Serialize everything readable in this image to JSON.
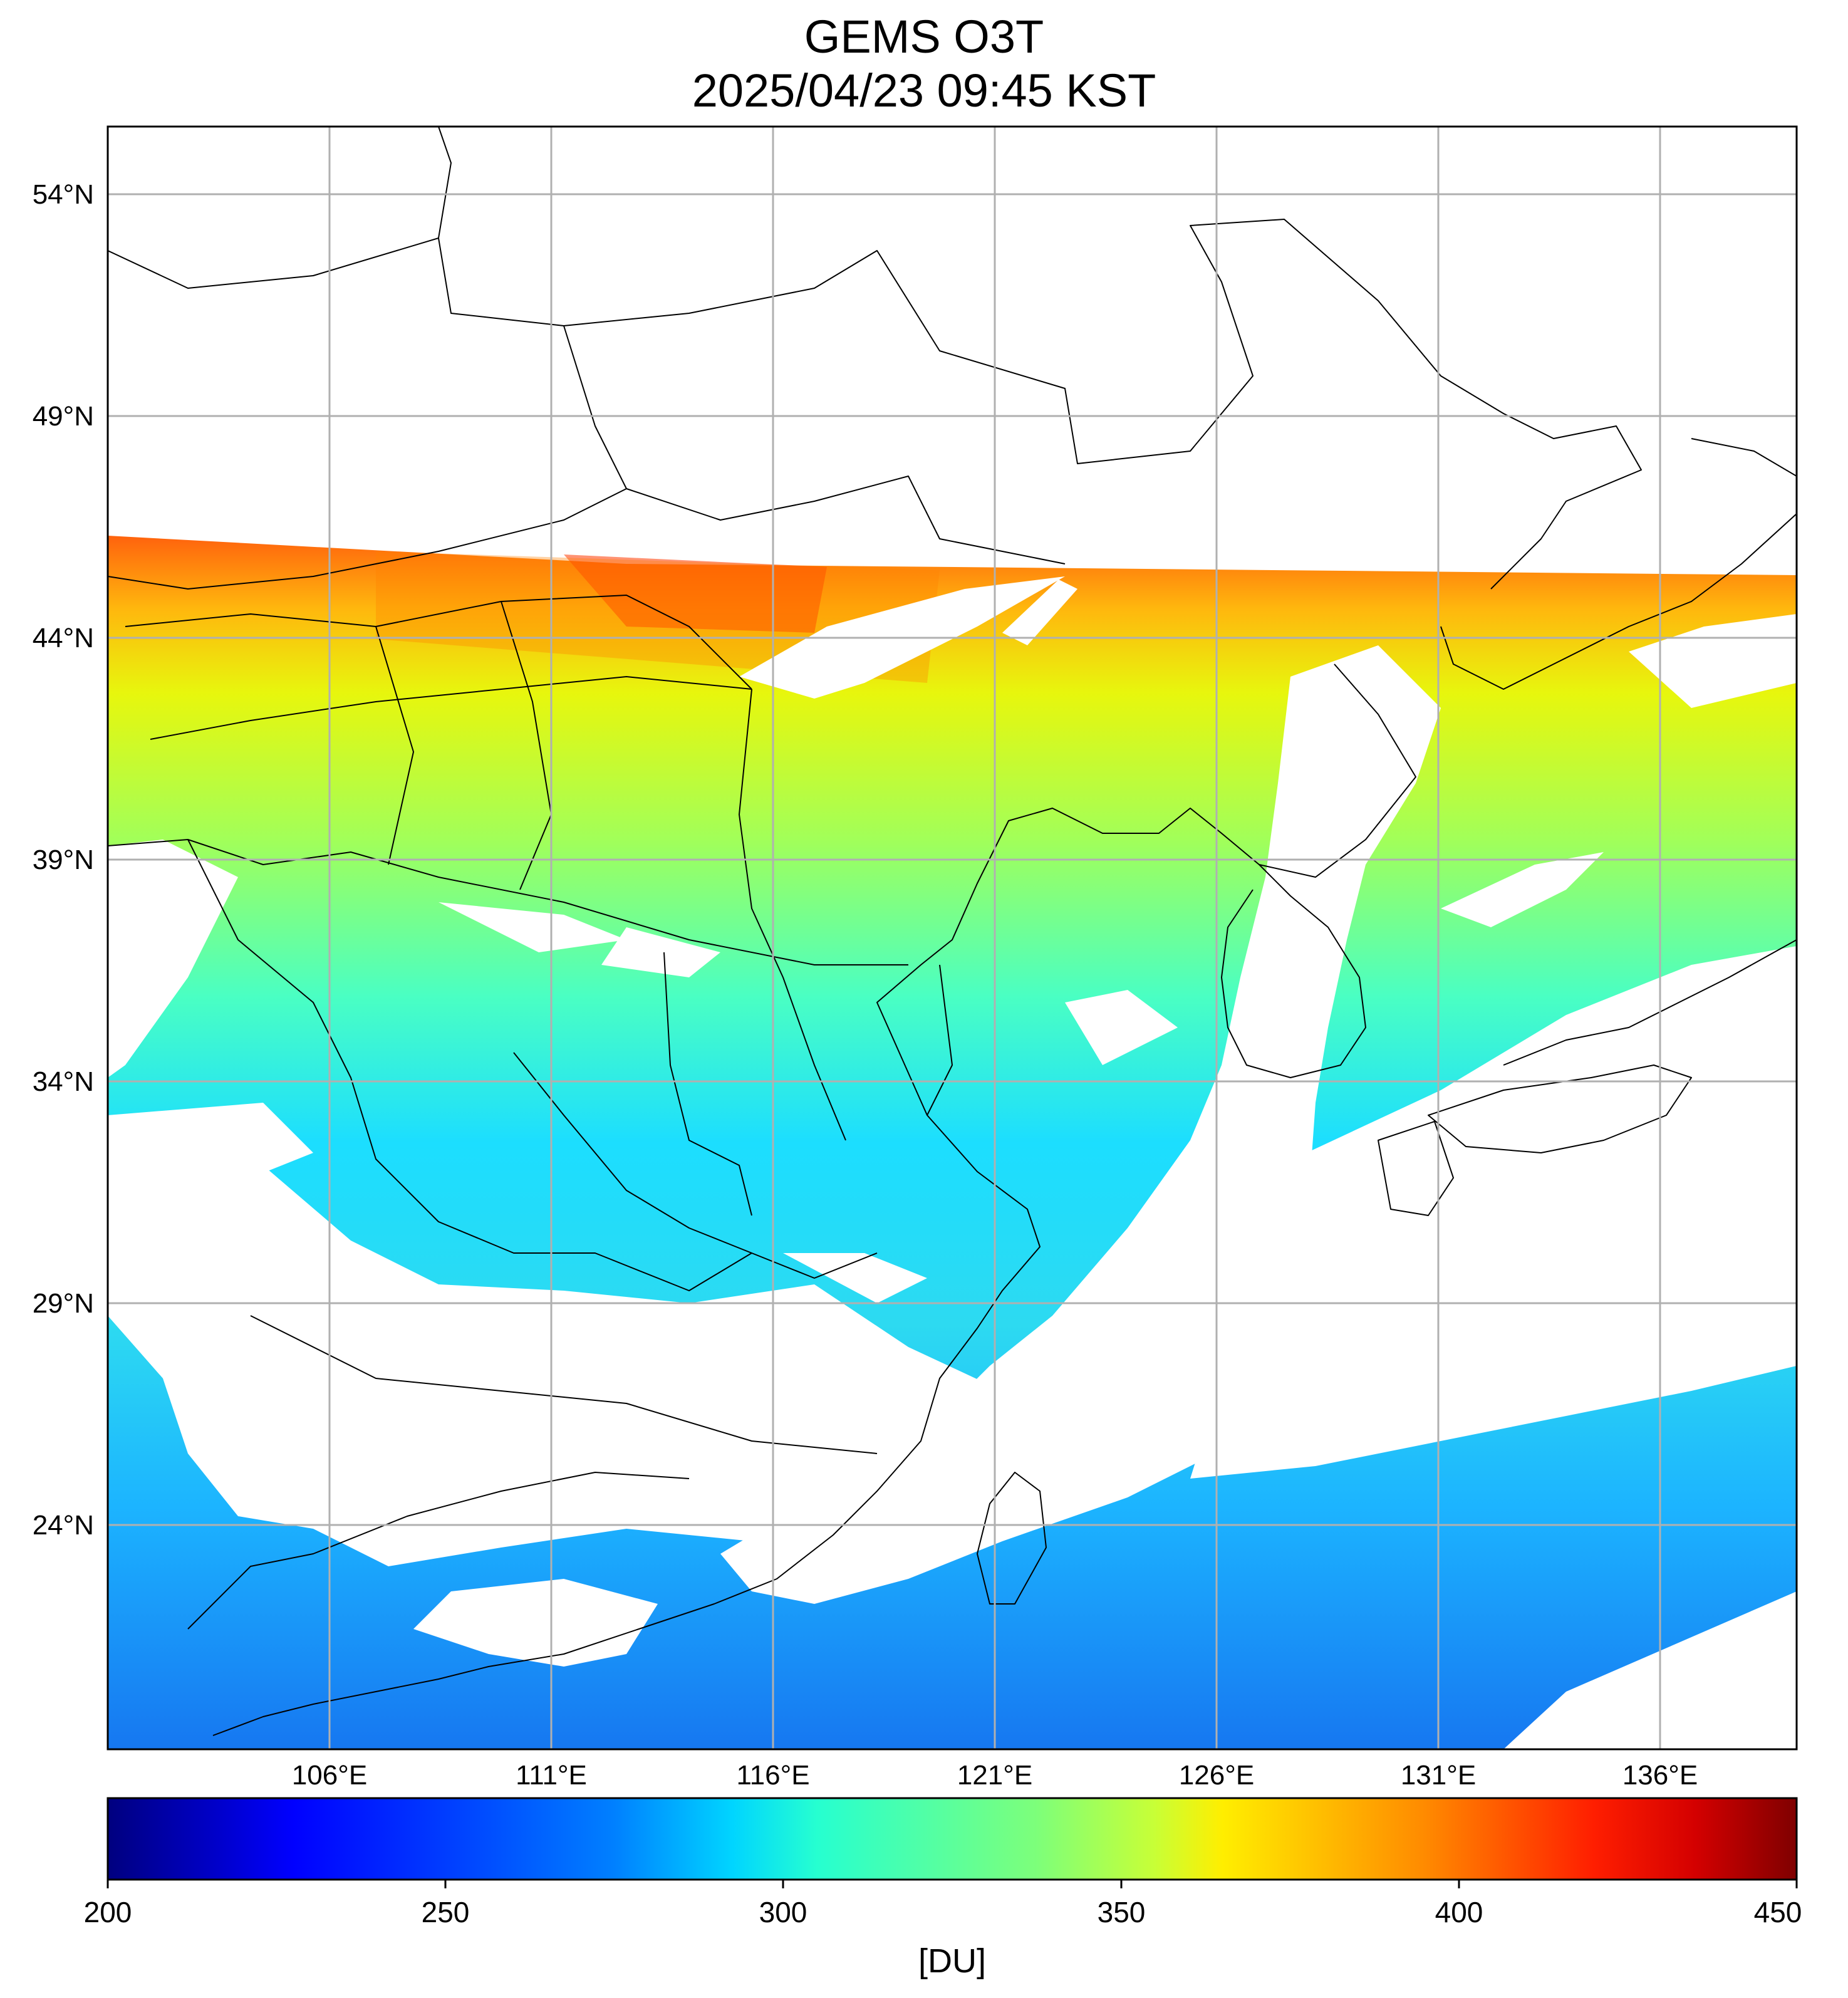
{
  "title": "GEMS O3T",
  "subtitle": "2025/04/23 09:45 KST",
  "map": {
    "lat_labels": [
      "54°N",
      "49°N",
      "44°N",
      "39°N",
      "34°N",
      "29°N",
      "24°N"
    ],
    "lat_values": [
      54,
      49,
      44,
      39,
      34,
      29,
      24
    ],
    "lon_labels": [
      "106°E",
      "111°E",
      "116°E",
      "121°E",
      "126°E",
      "131°E",
      "136°E"
    ],
    "lon_values": [
      106,
      111,
      116,
      121,
      126,
      131,
      136
    ],
    "extent": {
      "lon_min": 100.7,
      "lon_max": 138.7,
      "lat_min": 19.0,
      "lat_max": 55.5
    }
  },
  "colorbar": {
    "ticks": [
      "200",
      "250",
      "300",
      "350",
      "400",
      "450"
    ],
    "tick_values": [
      200,
      250,
      300,
      350,
      400,
      450
    ],
    "label": "[DU]",
    "colors": [
      "#00007f",
      "#0000ff",
      "#0080ff",
      "#00e5ff",
      "#33ffcc",
      "#7dff7a",
      "#c8ff36",
      "#ffee00",
      "#ffa300",
      "#ff4c00",
      "#e60000",
      "#7f0000"
    ]
  },
  "legend_colors": {
    "background": "#ffffff",
    "grid": "#b0b0b0",
    "coast": "#000000"
  }
}
